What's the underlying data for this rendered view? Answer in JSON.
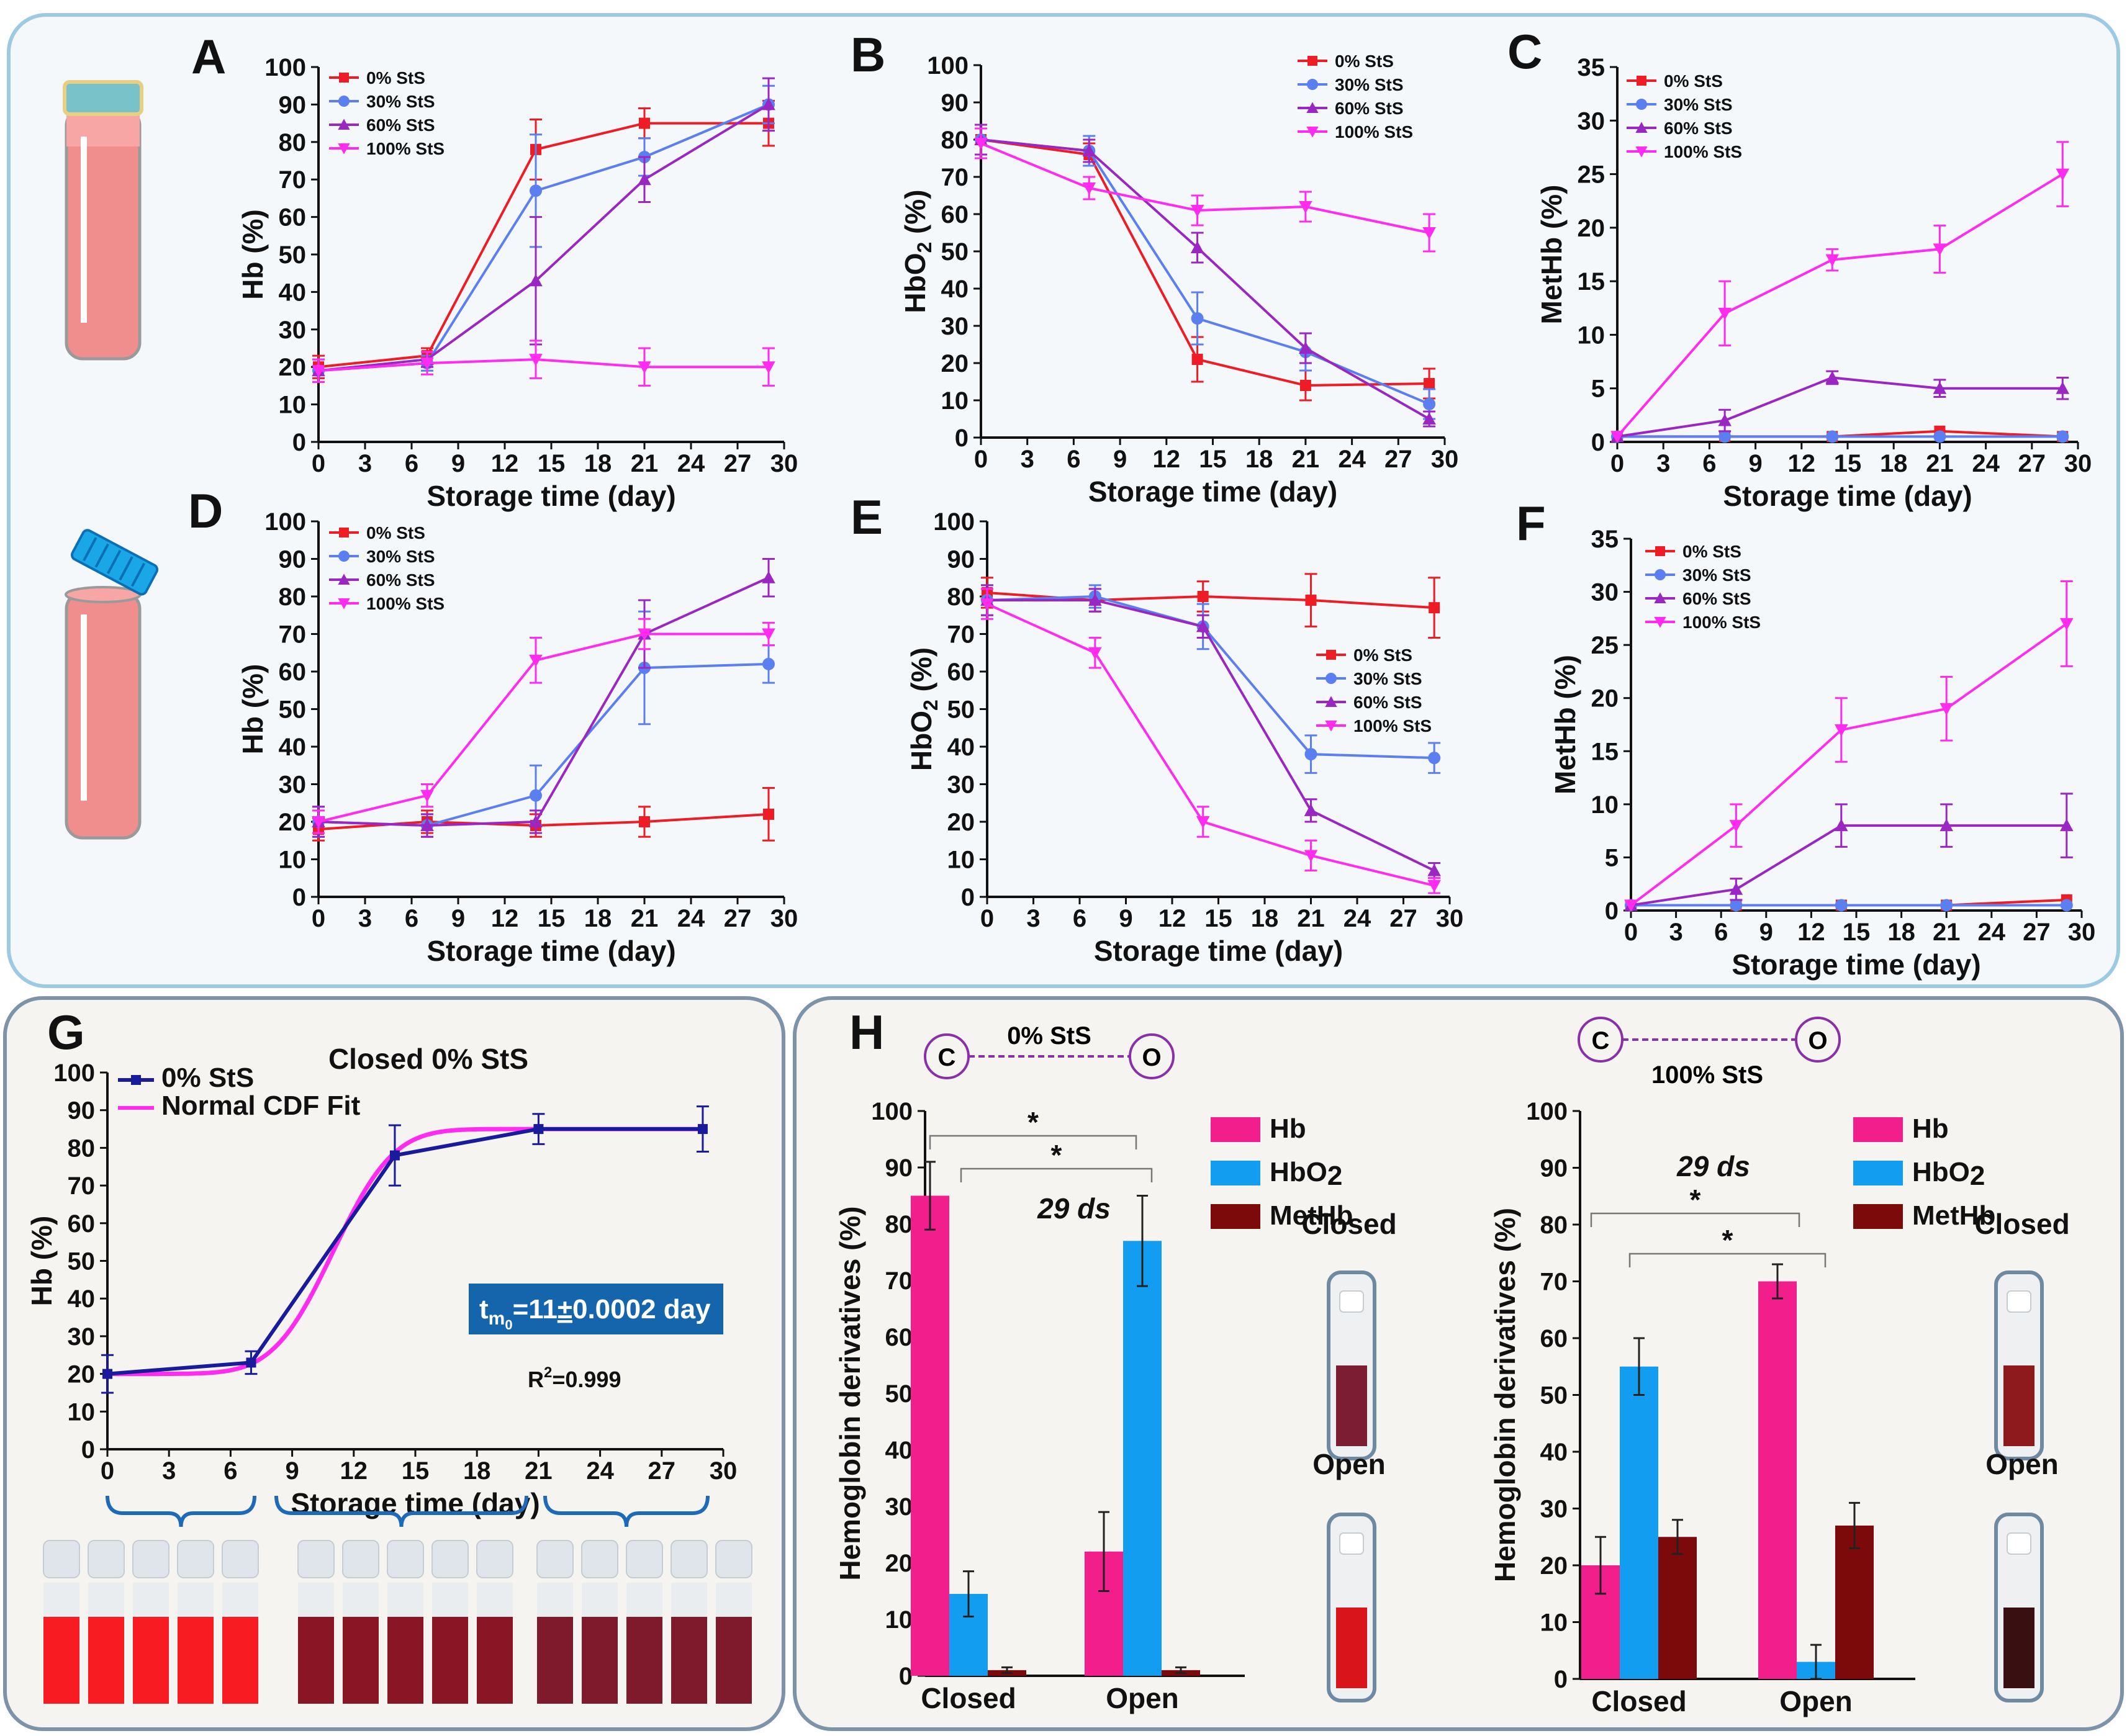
{
  "panel_labels": {
    "A": "A",
    "B": "B",
    "C": "C",
    "D": "D",
    "E": "E",
    "F": "F",
    "G": "G",
    "H": "H"
  },
  "colors": {
    "s0": "#ee1c24",
    "s30": "#5b7ff0",
    "s60": "#9b27c2",
    "s100": "#ff2cf0",
    "navy": "#1a1a9c",
    "hb": "#f21e8c",
    "hbo2": "#129df0",
    "methb": "#7c0a0a"
  },
  "chart_data": [
    {
      "id": "A",
      "type": "line",
      "xlabel": "Storage time (day)",
      "ylabel": "Hb (%)",
      "xlim": [
        0,
        30
      ],
      "xticks": [
        0,
        3,
        6,
        9,
        12,
        15,
        18,
        21,
        24,
        27,
        30
      ],
      "ylim": [
        0,
        100
      ],
      "ystep": 10,
      "legend": {
        "position": "top-left"
      },
      "series": [
        {
          "name": "0% StS",
          "color": "#ee1c24",
          "marker": "square",
          "x": [
            0,
            7,
            14,
            21,
            29
          ],
          "y": [
            20,
            23,
            78,
            85,
            85
          ],
          "err": [
            3,
            2,
            8,
            4,
            6
          ]
        },
        {
          "name": "30% StS",
          "color": "#5b7ff0",
          "marker": "circle",
          "x": [
            0,
            7,
            14,
            21,
            29
          ],
          "y": [
            19,
            21,
            67,
            76,
            90
          ],
          "err": [
            3,
            2,
            15,
            5,
            5
          ]
        },
        {
          "name": "60% StS",
          "color": "#9b27c2",
          "marker": "triangle",
          "x": [
            0,
            7,
            14,
            21,
            29
          ],
          "y": [
            19,
            22,
            43,
            70,
            90
          ],
          "err": [
            3,
            2,
            17,
            6,
            7
          ]
        },
        {
          "name": "100% StS",
          "color": "#ff2cf0",
          "marker": "triangle-down",
          "x": [
            0,
            7,
            14,
            21,
            29
          ],
          "y": [
            19,
            21,
            22,
            20,
            20
          ],
          "err": [
            3,
            3,
            5,
            5,
            5
          ]
        }
      ]
    },
    {
      "id": "B",
      "type": "line",
      "xlabel": "Storage time (day)",
      "ylabel": "HbO2 (%)",
      "xlim": [
        0,
        30
      ],
      "xticks": [
        0,
        3,
        6,
        9,
        12,
        15,
        18,
        21,
        24,
        27,
        30
      ],
      "ylim": [
        0,
        100
      ],
      "ystep": 10,
      "legend": {
        "position": "top-right"
      },
      "series": [
        {
          "name": "0% StS",
          "color": "#ee1c24",
          "marker": "square",
          "x": [
            0,
            7,
            14,
            21,
            29
          ],
          "y": [
            80,
            76,
            21,
            14,
            14.5
          ],
          "err": [
            4,
            3,
            6,
            4,
            4
          ]
        },
        {
          "name": "30% StS",
          "color": "#5b7ff0",
          "marker": "circle",
          "x": [
            0,
            7,
            14,
            21,
            29
          ],
          "y": [
            80,
            77,
            32,
            23,
            9
          ],
          "err": [
            4,
            4,
            7,
            5,
            4
          ]
        },
        {
          "name": "60% StS",
          "color": "#9b27c2",
          "marker": "triangle",
          "x": [
            0,
            7,
            14,
            21,
            29
          ],
          "y": [
            80,
            77,
            51,
            24,
            5
          ],
          "err": [
            4,
            3,
            4,
            4,
            2
          ]
        },
        {
          "name": "100% StS",
          "color": "#ff2cf0",
          "marker": "triangle-down",
          "x": [
            0,
            7,
            14,
            21,
            29
          ],
          "y": [
            79,
            67,
            61,
            62,
            55
          ],
          "err": [
            4,
            3,
            4,
            4,
            5
          ]
        }
      ]
    },
    {
      "id": "C",
      "type": "line",
      "xlabel": "Storage time (day)",
      "ylabel": "MetHb (%)",
      "xlim": [
        0,
        30
      ],
      "xticks": [
        0,
        3,
        6,
        9,
        12,
        15,
        18,
        21,
        24,
        27,
        30
      ],
      "ylim": [
        0,
        35
      ],
      "ystep": 5,
      "legend": {
        "position": "top-left"
      },
      "series": [
        {
          "name": "0% StS",
          "color": "#ee1c24",
          "marker": "square",
          "x": [
            0,
            7,
            14,
            21,
            29
          ],
          "y": [
            0.5,
            0.5,
            0.5,
            1,
            0.5
          ],
          "err": [
            0,
            0,
            0,
            0,
            0
          ]
        },
        {
          "name": "30% StS",
          "color": "#5b7ff0",
          "marker": "circle",
          "x": [
            0,
            7,
            14,
            21,
            29
          ],
          "y": [
            0.5,
            0.5,
            0.5,
            0.5,
            0.5
          ],
          "err": [
            0,
            0,
            0,
            0,
            0
          ]
        },
        {
          "name": "60% StS",
          "color": "#9b27c2",
          "marker": "triangle",
          "x": [
            0,
            7,
            14,
            21,
            29
          ],
          "y": [
            0.5,
            2,
            6,
            5,
            5
          ],
          "err": [
            0,
            1,
            0.6,
            0.8,
            1
          ]
        },
        {
          "name": "100% StS",
          "color": "#ff2cf0",
          "marker": "triangle-down",
          "x": [
            0,
            7,
            14,
            21,
            29
          ],
          "y": [
            0.5,
            12,
            17,
            18,
            25
          ],
          "err": [
            0,
            3,
            1,
            2.2,
            3
          ]
        }
      ]
    },
    {
      "id": "D",
      "type": "line",
      "xlabel": "Storage time (day)",
      "ylabel": "Hb (%)",
      "xlim": [
        0,
        30
      ],
      "xticks": [
        0,
        3,
        6,
        9,
        12,
        15,
        18,
        21,
        24,
        27,
        30
      ],
      "ylim": [
        0,
        100
      ],
      "ystep": 10,
      "legend": {
        "position": "top-left"
      },
      "series": [
        {
          "name": "0% StS",
          "color": "#ee1c24",
          "marker": "square",
          "x": [
            0,
            7,
            14,
            21,
            29
          ],
          "y": [
            18,
            20,
            19,
            20,
            22
          ],
          "err": [
            3,
            3,
            3,
            4,
            7
          ]
        },
        {
          "name": "30% StS",
          "color": "#5b7ff0",
          "marker": "circle",
          "x": [
            0,
            7,
            14,
            21,
            29
          ],
          "y": [
            20,
            19,
            27,
            61,
            62
          ],
          "err": [
            4,
            3,
            8,
            15,
            5
          ]
        },
        {
          "name": "60% StS",
          "color": "#9b27c2",
          "marker": "triangle",
          "x": [
            0,
            7,
            14,
            21,
            29
          ],
          "y": [
            20,
            19,
            20,
            70,
            85
          ],
          "err": [
            4,
            3,
            3,
            9,
            5
          ]
        },
        {
          "name": "100% StS",
          "color": "#ff2cf0",
          "marker": "triangle-down",
          "x": [
            0,
            7,
            14,
            21,
            29
          ],
          "y": [
            20,
            27,
            63,
            70,
            70
          ],
          "err": [
            3,
            3,
            6,
            4,
            3
          ]
        }
      ]
    },
    {
      "id": "E",
      "type": "line",
      "xlabel": "Storage time (day)",
      "ylabel": "HbO2 (%)",
      "xlim": [
        0,
        30
      ],
      "xticks": [
        0,
        3,
        6,
        9,
        12,
        15,
        18,
        21,
        24,
        27,
        30
      ],
      "ylim": [
        0,
        100
      ],
      "ystep": 10,
      "legend": {
        "position": "center-right"
      },
      "series": [
        {
          "name": "0% StS",
          "color": "#ee1c24",
          "marker": "square",
          "x": [
            0,
            7,
            14,
            21,
            29
          ],
          "y": [
            81,
            79,
            80,
            79,
            77
          ],
          "err": [
            4,
            3,
            4,
            7,
            8
          ]
        },
        {
          "name": "30% StS",
          "color": "#5b7ff0",
          "marker": "circle",
          "x": [
            0,
            7,
            14,
            21,
            29
          ],
          "y": [
            79,
            80,
            72,
            38,
            37
          ],
          "err": [
            4,
            3,
            6,
            5,
            4
          ]
        },
        {
          "name": "60% StS",
          "color": "#9b27c2",
          "marker": "triangle",
          "x": [
            0,
            7,
            14,
            21,
            29
          ],
          "y": [
            79,
            79,
            72,
            23,
            7
          ],
          "err": [
            4,
            3,
            3,
            3,
            2
          ]
        },
        {
          "name": "100% StS",
          "color": "#ff2cf0",
          "marker": "triangle-down",
          "x": [
            0,
            7,
            14,
            21,
            29
          ],
          "y": [
            78,
            65,
            20,
            11,
            3
          ],
          "err": [
            4,
            4,
            4,
            4,
            2
          ]
        }
      ]
    },
    {
      "id": "F",
      "type": "line",
      "xlabel": "Storage time (day)",
      "ylabel": "MetHb (%)",
      "xlim": [
        0,
        30
      ],
      "xticks": [
        0,
        3,
        6,
        9,
        12,
        15,
        18,
        21,
        24,
        27,
        30
      ],
      "ylim": [
        0,
        35
      ],
      "ystep": 5,
      "legend": {
        "position": "top-left"
      },
      "series": [
        {
          "name": "0% StS",
          "color": "#ee1c24",
          "marker": "square",
          "x": [
            0,
            7,
            14,
            21,
            29
          ],
          "y": [
            0.5,
            0.5,
            0.5,
            0.5,
            1
          ],
          "err": [
            0,
            0,
            0,
            0,
            0
          ]
        },
        {
          "name": "30% StS",
          "color": "#5b7ff0",
          "marker": "circle",
          "x": [
            0,
            7,
            14,
            21,
            29
          ],
          "y": [
            0.5,
            0.5,
            0.5,
            0.5,
            0.5
          ],
          "err": [
            0,
            0,
            0,
            0,
            0
          ]
        },
        {
          "name": "60% StS",
          "color": "#9b27c2",
          "marker": "triangle",
          "x": [
            0,
            7,
            14,
            21,
            29
          ],
          "y": [
            0.5,
            2,
            8,
            8,
            8
          ],
          "err": [
            0,
            1,
            2,
            2,
            3
          ]
        },
        {
          "name": "100% StS",
          "color": "#ff2cf0",
          "marker": "triangle-down",
          "x": [
            0,
            7,
            14,
            21,
            29
          ],
          "y": [
            0.5,
            8,
            17,
            19,
            27
          ],
          "err": [
            0,
            2,
            3,
            3,
            4
          ]
        }
      ]
    },
    {
      "id": "G",
      "type": "line",
      "title": "Closed 0% StS",
      "xlabel": "Storage time (day)",
      "ylabel": "Hb (%)",
      "xlim": [
        0,
        30
      ],
      "xticks": [
        0,
        3,
        6,
        9,
        12,
        15,
        18,
        21,
        24,
        27,
        30
      ],
      "ylim": [
        0,
        100
      ],
      "ystep": 10,
      "legend": {
        "position": "top-left"
      },
      "series": [
        {
          "name": "0% StS",
          "color": "#1a1a9c",
          "marker": "square",
          "x": [
            0,
            7,
            14,
            21,
            29
          ],
          "y": [
            20,
            23,
            78,
            85,
            85
          ],
          "err": [
            5,
            3,
            8,
            4,
            6
          ]
        }
      ],
      "fit": {
        "name": "Normal CDF Fit",
        "color": "#ff2cf0",
        "base": 20,
        "top": 85,
        "mu": 11,
        "sigma": 2.3
      },
      "annotation": "t_m0=11±0.0002 day",
      "r2": "R2=0.999",
      "annotation_parts": {
        "t": "t",
        "sub1": "m",
        "sub2": "0",
        "rest": "=11",
        "pm": "±",
        "rest2": "0.0002 day"
      },
      "r2_parts": {
        "r": "R",
        "sup": "2",
        "rest": "=0.999"
      }
    },
    {
      "id": "H1",
      "type": "bar",
      "header": "0% StS",
      "c_label": "C",
      "o_label": "O",
      "annotation": "29 ds",
      "ylabel": "Hemoglobin derivatives (%)",
      "ylim": [
        0,
        100
      ],
      "ystep": 10,
      "categories": [
        "Closed",
        "Open"
      ],
      "series": [
        {
          "name": "Hb",
          "color": "#f21e8c",
          "values": [
            85,
            22
          ],
          "err": [
            6,
            7
          ]
        },
        {
          "name": "HbO2",
          "color": "#129df0",
          "values": [
            14.5,
            77
          ],
          "err": [
            4,
            8
          ]
        },
        {
          "name": "MetHb",
          "color": "#7c0a0a",
          "values": [
            1,
            1
          ],
          "err": [
            0.5,
            0.5
          ]
        }
      ],
      "significance": [
        "*",
        "*"
      ],
      "vial_labels": [
        "Closed",
        "Open"
      ]
    },
    {
      "id": "H2",
      "type": "bar",
      "header": "100% StS",
      "c_label": "C",
      "o_label": "O",
      "annotation": "29 ds",
      "ylabel": "Hemoglobin derivatives (%)",
      "ylim": [
        0,
        100
      ],
      "ystep": 10,
      "categories": [
        "Closed",
        "Open"
      ],
      "series": [
        {
          "name": "Hb",
          "color": "#f21e8c",
          "values": [
            20,
            70
          ],
          "err": [
            5,
            3
          ]
        },
        {
          "name": "HbO2",
          "color": "#129df0",
          "values": [
            55,
            3
          ],
          "err": [
            5,
            3
          ]
        },
        {
          "name": "MetHb",
          "color": "#7c0a0a",
          "values": [
            25,
            27
          ],
          "err": [
            3,
            4
          ]
        }
      ],
      "significance": [
        "*",
        "*"
      ],
      "vial_labels": [
        "Closed",
        "Open"
      ]
    }
  ]
}
